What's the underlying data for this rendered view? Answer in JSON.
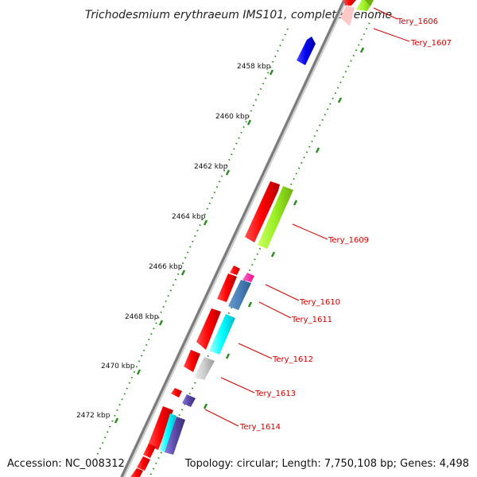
{
  "title": "Trichodesmium erythraeum IMS101, complete genome",
  "footer": {
    "accession": "Accession: NC_008312",
    "stats": "Topology: circular; Length: 7,750,108 bp; Genes: 4,498"
  },
  "colors": {
    "backbone": "#8a8a8a",
    "dots": "#2e8b22",
    "label": "#cc0000",
    "strand_forward": "#ff0000"
  },
  "kbp_ticks": [
    "2458 kbp",
    "2460 kbp",
    "2462 kbp",
    "2464 kbp",
    "2466 kbp",
    "2468 kbp",
    "2470 kbp",
    "2472 kbp"
  ],
  "gene_labels": [
    "Tery_1606",
    "Tery_1607",
    "Tery_1609",
    "Tery_1610",
    "Tery_1611",
    "Tery_1612",
    "Tery_1613",
    "Tery_1614"
  ]
}
